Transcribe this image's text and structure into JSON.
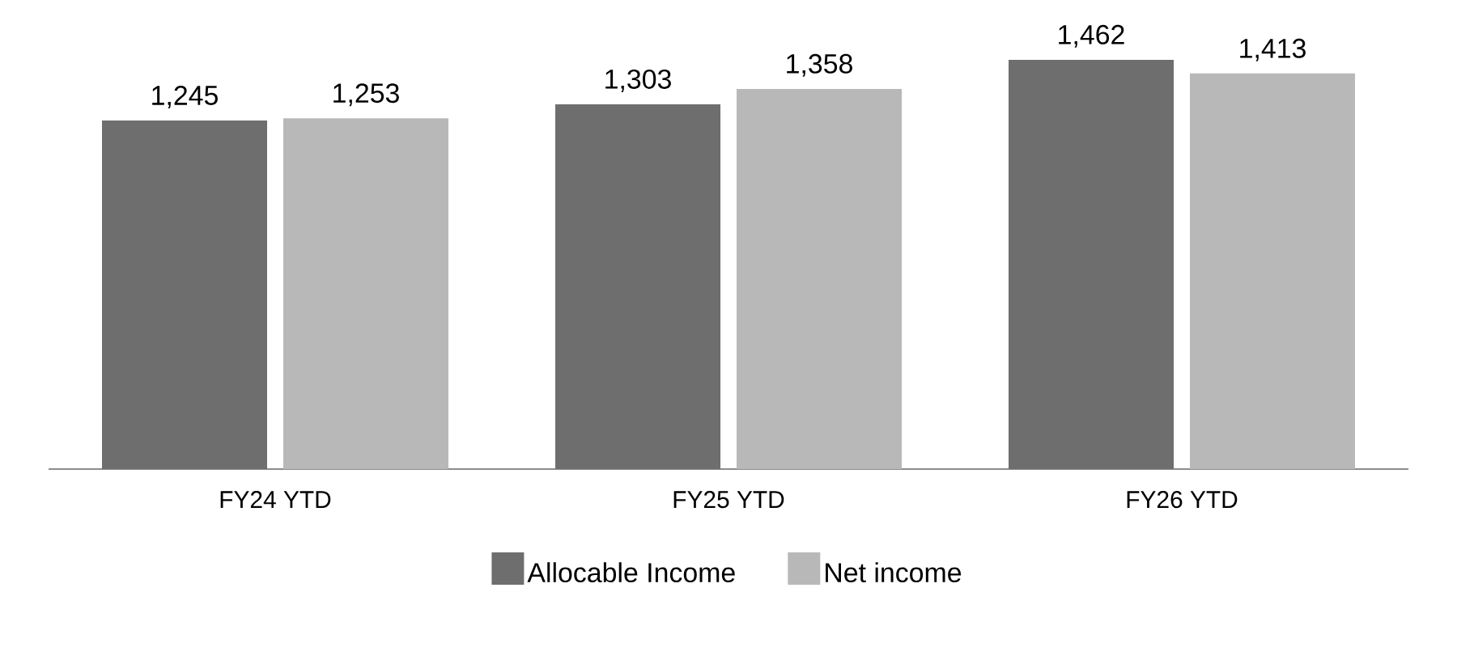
{
  "chart_data": {
    "type": "bar",
    "categories": [
      "FY24 YTD",
      "FY25 YTD",
      "FY26 YTD"
    ],
    "series": [
      {
        "name": "Allocable Income",
        "color": "#6e6e6e",
        "values": [
          1245,
          1303,
          1462
        ],
        "value_labels": [
          "1,245",
          "1,303",
          "1,462"
        ]
      },
      {
        "name": "Net income",
        "color": "#b8b8b8",
        "values": [
          1253,
          1358,
          1413
        ],
        "value_labels": [
          "1,253",
          "1,358",
          "1,413"
        ]
      }
    ],
    "legend": "bottom",
    "tick_labels": "x"
  }
}
